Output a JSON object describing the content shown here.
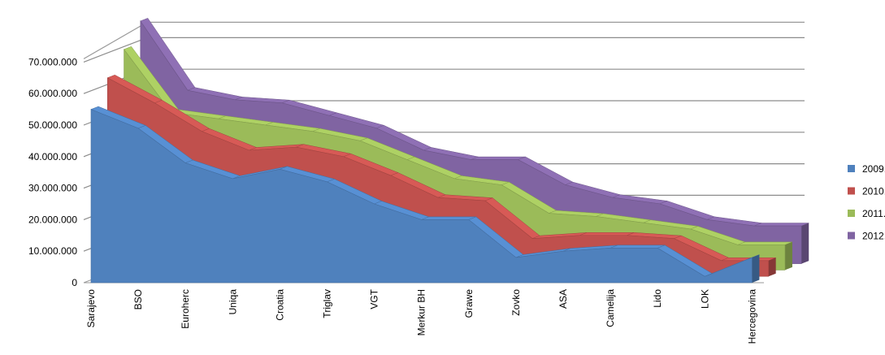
{
  "chart_data": {
    "type": "area",
    "title": "",
    "xlabel": "",
    "ylabel": "",
    "ylim": [
      0,
      70000000
    ],
    "y_ticks": [
      0,
      10000000,
      20000000,
      30000000,
      40000000,
      50000000,
      60000000,
      70000000
    ],
    "y_tick_labels": [
      "0",
      "10.000.000",
      "20.000.000",
      "30.000.000",
      "40.000.000",
      "50.000.000",
      "60.000.000",
      "70.000.000"
    ],
    "grid": true,
    "legend_position": "right",
    "categories": [
      "Sarajevo",
      "BSO",
      "Euroherc",
      "Uniqa",
      "Croatia",
      "Triglav",
      "VGT",
      "Merkur BH",
      "Grawe",
      "Zovko",
      "ASA",
      "Camelija",
      "Lido",
      "LOK",
      "Hercegovina"
    ],
    "series": [
      {
        "name": "2009.",
        "color": "#4f81bd",
        "values": [
          55000000,
          49000000,
          38000000,
          33000000,
          36000000,
          32000000,
          25000000,
          20000000,
          20000000,
          8000000,
          10000000,
          11000000,
          11000000,
          2000000,
          8000000
        ]
      },
      {
        "name": "2010.",
        "color": "#c0504d",
        "values": [
          63000000,
          55000000,
          46000000,
          40000000,
          41000000,
          38000000,
          32000000,
          25000000,
          24000000,
          12000000,
          13000000,
          13000000,
          12000000,
          5000000,
          5000000
        ]
      },
      {
        "name": "2011.",
        "color": "#9bbb59",
        "values": [
          70000000,
          50000000,
          48000000,
          46000000,
          44000000,
          41000000,
          35000000,
          29000000,
          27000000,
          18000000,
          17000000,
          15000000,
          13000000,
          8000000,
          8000000
        ]
      },
      {
        "name": "2012.",
        "color": "#8064a2",
        "values": [
          77000000,
          55000000,
          52000000,
          51000000,
          47000000,
          43000000,
          36000000,
          33000000,
          33000000,
          25000000,
          21000000,
          19000000,
          14000000,
          12000000,
          12000000
        ]
      }
    ]
  }
}
